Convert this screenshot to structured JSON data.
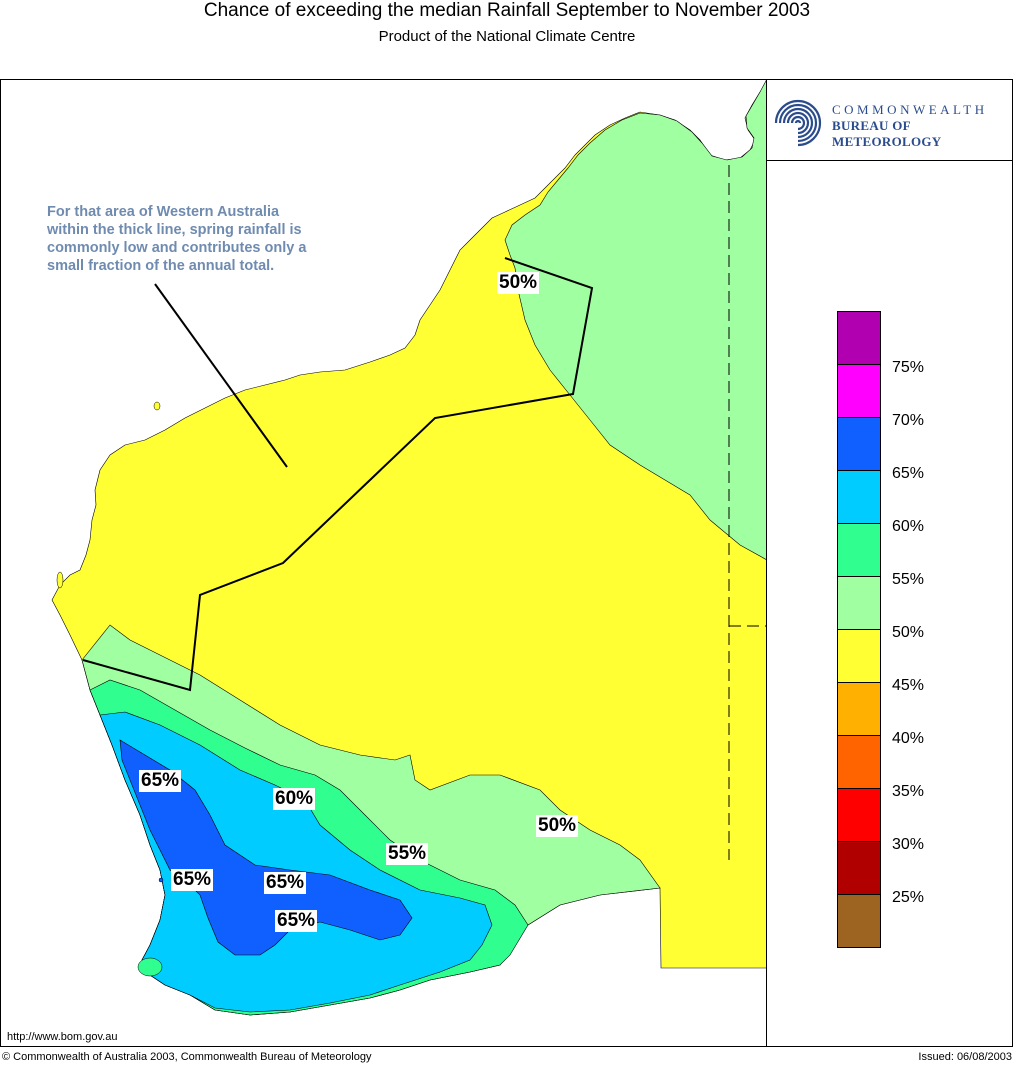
{
  "header": {
    "title": "Chance of exceeding the median Rainfall September to November 2003",
    "subtitle": "Product of the National Climate Centre"
  },
  "logo": {
    "line1": "COMMONWEALTH",
    "line2": "BUREAU OF METEOROLOGY",
    "icon": "bom-swirl-icon"
  },
  "annotation": {
    "text": "For that area of Western Australia within the thick line, spring rainfall is commonly low and contributes only a small fraction of the annual total."
  },
  "contour_labels": [
    {
      "text": "50%"
    },
    {
      "text": "65%"
    },
    {
      "text": "60%"
    },
    {
      "text": "55%"
    },
    {
      "text": "50%"
    },
    {
      "text": "65%"
    },
    {
      "text": "65%"
    },
    {
      "text": "65%"
    }
  ],
  "legend": {
    "colors": [
      "#b000b0",
      "#ff00ff",
      "#1060ff",
      "#00ccff",
      "#30ff90",
      "#a0ffa0",
      "#ffff33",
      "#ffb000",
      "#ff6400",
      "#ff0000",
      "#b00000",
      "#9c6420"
    ],
    "labels": [
      "75%",
      "70%",
      "65%",
      "60%",
      "55%",
      "50%",
      "45%",
      "40%",
      "35%",
      "30%",
      "25%"
    ]
  },
  "map_colors": {
    "ocean": "#ffffff",
    "yellow": "#ffff33",
    "light_green": "#a0ffa0",
    "green": "#30ff90",
    "cyan": "#00ccff",
    "blue": "#1060ff"
  },
  "footer": {
    "url": "http://www.bom.gov.au",
    "copyright": "© Commonwealth of Australia 2003, Commonwealth Bureau of Meteorology",
    "issued": "Issued: 06/08/2003"
  }
}
